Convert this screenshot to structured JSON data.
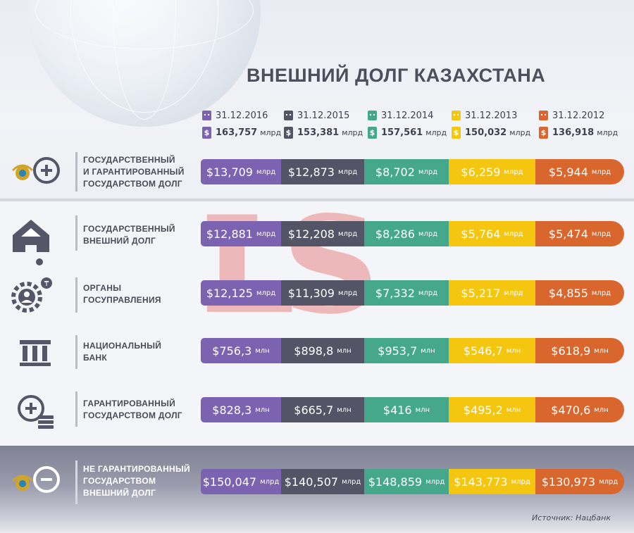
{
  "title": "ВНЕШНИЙ ДОЛГ КАЗАХСТАНА",
  "watermark": "LS",
  "colors": {
    "purple": "#7b63b1",
    "graphite": "#535466",
    "green": "#45a88b",
    "yellow": "#f5c60f",
    "orange": "#d9662c"
  },
  "columns": [
    {
      "date": "31.12.2016",
      "total": "163,757",
      "total_unit": "млрд"
    },
    {
      "date": "31.12.2015",
      "total": "153,381",
      "total_unit": "млрд"
    },
    {
      "date": "31.12.2014",
      "total": "157,561",
      "total_unit": "млрд"
    },
    {
      "date": "31.12.2013",
      "total": "150,032",
      "total_unit": "млрд"
    },
    {
      "date": "31.12.2012",
      "total": "136,918",
      "total_unit": "млрд"
    }
  ],
  "dollar_sign": "$",
  "rows": [
    {
      "label_lines": [
        "ГОСУДАРСТВЕННЫЙ",
        "И ГАРАНТИРОВАННЫЙ",
        "ГОСУДАРСТВОМ ДОЛГ"
      ],
      "icon": "emblem-plus-icon",
      "cells": [
        [
          "$13,709",
          "млрд"
        ],
        [
          "$12,873",
          "млрд"
        ],
        [
          "$8,702",
          "млрд"
        ],
        [
          "$6,259",
          "млрд"
        ],
        [
          "$5,944",
          "млрд"
        ]
      ]
    },
    {
      "label_lines": [
        "ГОСУДАРСТВЕННЫЙ",
        "ВНЕШНИЙ ДОЛГ"
      ],
      "icon": "house-dollar-icon",
      "cells": [
        [
          "$12,881",
          "млрд"
        ],
        [
          "$12,208",
          "млрд"
        ],
        [
          "$8,286",
          "млрд"
        ],
        [
          "$5,764",
          "млрд"
        ],
        [
          "$5,474",
          "млрд"
        ]
      ]
    },
    {
      "label_lines": [
        "ОРГАНЫ",
        "ГОСУПРАВЛЕНИЯ"
      ],
      "icon": "gear-person-icon",
      "cells": [
        [
          "$12,125",
          "млрд"
        ],
        [
          "$11,309",
          "млрд"
        ],
        [
          "$7,332",
          "млрд"
        ],
        [
          "$5,217",
          "млрд"
        ],
        [
          "$4,855",
          "млрд"
        ]
      ]
    },
    {
      "label_lines": [
        "НАЦИОНАЛЬНЫЙ",
        "БАНК"
      ],
      "icon": "bank-columns-icon",
      "cells": [
        [
          "$756,3",
          "млн"
        ],
        [
          "$898,8",
          "млн"
        ],
        [
          "$953,7",
          "млн"
        ],
        [
          "$546,7",
          "млн"
        ],
        [
          "$618,9",
          "млн"
        ]
      ]
    },
    {
      "label_lines": [
        "ГАРАНТИРОВАННЫЙ",
        "ГОСУДАРСТВОМ ДОЛГ"
      ],
      "icon": "plus-money-icon",
      "cells": [
        [
          "$828,3",
          "млн"
        ],
        [
          "$665,7",
          "млн"
        ],
        [
          "$416",
          "млн"
        ],
        [
          "$495,2",
          "млн"
        ],
        [
          "$470,6",
          "млн"
        ]
      ]
    },
    {
      "label_lines": [
        "НЕ ГАРАНТИРОВАННЫЙ",
        "ГОСУДАРСТВОМ",
        "ВНЕШНИЙ ДОЛГ"
      ],
      "icon": "emblem-minus-icon",
      "cells": [
        [
          "$150,047",
          "млрд"
        ],
        [
          "$140,507",
          "млрд"
        ],
        [
          "$148,859",
          "млрд"
        ],
        [
          "$143,773",
          "млрд"
        ],
        [
          "$130,973",
          "млрд"
        ]
      ]
    }
  ],
  "source": "Источник: Нацбанк"
}
